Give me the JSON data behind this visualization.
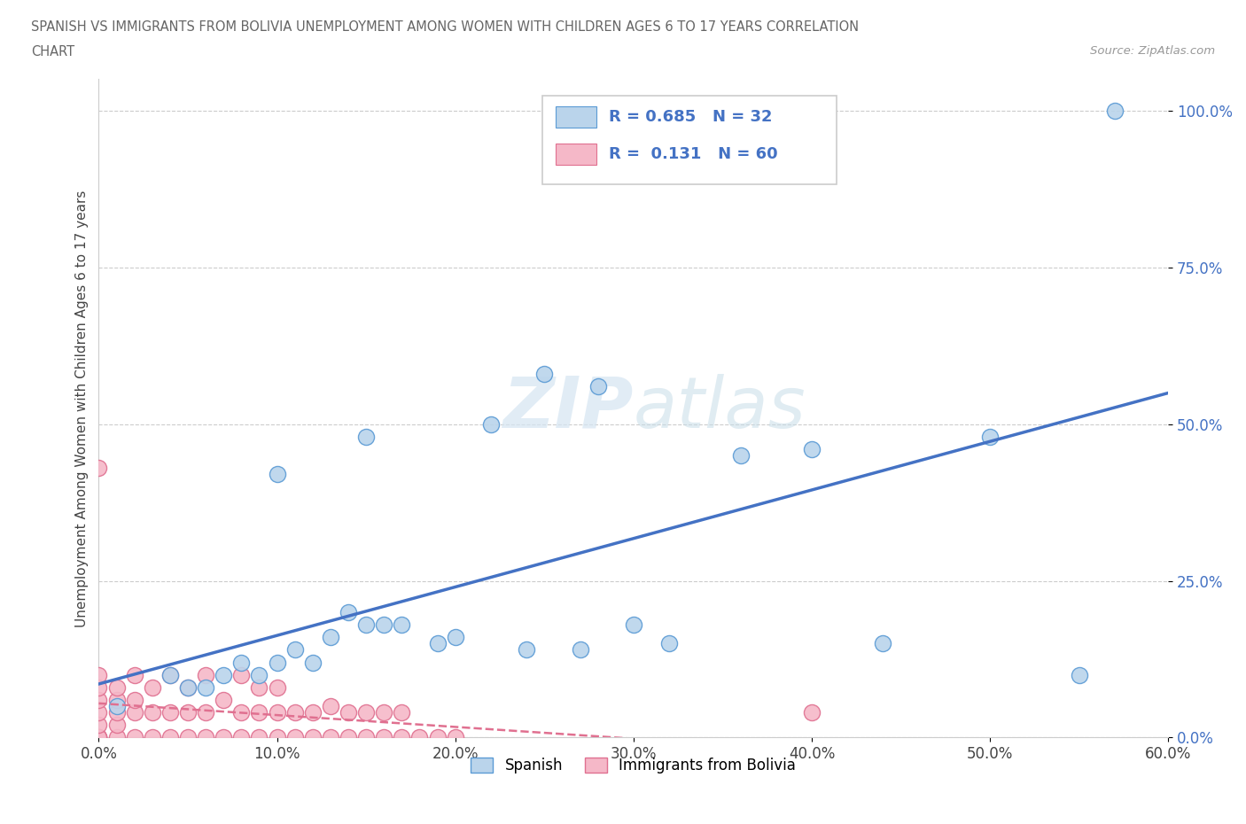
{
  "title_line1": "SPANISH VS IMMIGRANTS FROM BOLIVIA UNEMPLOYMENT AMONG WOMEN WITH CHILDREN AGES 6 TO 17 YEARS CORRELATION",
  "title_line2": "CHART",
  "source": "Source: ZipAtlas.com",
  "ylabel": "Unemployment Among Women with Children Ages 6 to 17 years",
  "xlim": [
    0.0,
    0.6
  ],
  "ylim": [
    0.0,
    1.05
  ],
  "xticks": [
    0.0,
    0.1,
    0.2,
    0.3,
    0.4,
    0.5,
    0.6
  ],
  "xtick_labels": [
    "0.0%",
    "10.0%",
    "20.0%",
    "30.0%",
    "40.0%",
    "50.0%",
    "60.0%"
  ],
  "yticks": [
    0.0,
    0.25,
    0.5,
    0.75,
    1.0
  ],
  "ytick_labels": [
    "0.0%",
    "25.0%",
    "50.0%",
    "75.0%",
    "100.0%"
  ],
  "watermark_zip": "ZIP",
  "watermark_atlas": "atlas",
  "spanish_color": "#bad4eb",
  "bolivia_color": "#f5b8c8",
  "spanish_edge": "#5b9bd5",
  "bolivia_edge": "#e07090",
  "line_spanish_color": "#4472c4",
  "line_bolivia_color": "#e07090",
  "R_spanish": 0.685,
  "N_spanish": 32,
  "R_bolivia": 0.131,
  "N_bolivia": 60,
  "spanish_x": [
    0.01,
    0.04,
    0.05,
    0.06,
    0.07,
    0.08,
    0.09,
    0.1,
    0.1,
    0.11,
    0.12,
    0.13,
    0.14,
    0.15,
    0.15,
    0.16,
    0.17,
    0.19,
    0.2,
    0.22,
    0.24,
    0.25,
    0.27,
    0.28,
    0.3,
    0.32,
    0.36,
    0.4,
    0.44,
    0.5,
    0.55,
    0.57
  ],
  "spanish_y": [
    0.05,
    0.1,
    0.08,
    0.08,
    0.1,
    0.12,
    0.1,
    0.12,
    0.42,
    0.14,
    0.12,
    0.16,
    0.2,
    0.48,
    0.18,
    0.18,
    0.18,
    0.15,
    0.16,
    0.5,
    0.14,
    0.58,
    0.14,
    0.56,
    0.18,
    0.15,
    0.45,
    0.46,
    0.15,
    0.48,
    0.1,
    1.0
  ],
  "bolivia_x": [
    0.0,
    0.0,
    0.0,
    0.0,
    0.0,
    0.0,
    0.0,
    0.0,
    0.0,
    0.0,
    0.01,
    0.01,
    0.01,
    0.01,
    0.01,
    0.02,
    0.02,
    0.02,
    0.02,
    0.03,
    0.03,
    0.03,
    0.04,
    0.04,
    0.04,
    0.05,
    0.05,
    0.05,
    0.06,
    0.06,
    0.06,
    0.07,
    0.07,
    0.08,
    0.08,
    0.08,
    0.09,
    0.09,
    0.09,
    0.1,
    0.1,
    0.1,
    0.11,
    0.11,
    0.12,
    0.12,
    0.13,
    0.13,
    0.14,
    0.14,
    0.15,
    0.15,
    0.16,
    0.16,
    0.17,
    0.17,
    0.18,
    0.19,
    0.2,
    0.4
  ],
  "bolivia_y": [
    0.0,
    0.0,
    0.0,
    0.0,
    0.02,
    0.04,
    0.06,
    0.08,
    0.1,
    0.43,
    0.0,
    0.02,
    0.04,
    0.06,
    0.08,
    0.0,
    0.04,
    0.06,
    0.1,
    0.0,
    0.04,
    0.08,
    0.0,
    0.04,
    0.1,
    0.0,
    0.04,
    0.08,
    0.0,
    0.04,
    0.1,
    0.0,
    0.06,
    0.0,
    0.04,
    0.1,
    0.0,
    0.04,
    0.08,
    0.0,
    0.04,
    0.08,
    0.0,
    0.04,
    0.0,
    0.04,
    0.0,
    0.05,
    0.0,
    0.04,
    0.0,
    0.04,
    0.0,
    0.04,
    0.0,
    0.04,
    0.0,
    0.0,
    0.0,
    0.04
  ],
  "bg_color": "#ffffff",
  "grid_color": "#cccccc",
  "legend_label_spanish": "Spanish",
  "legend_label_bolivia": "Immigrants from Bolivia"
}
